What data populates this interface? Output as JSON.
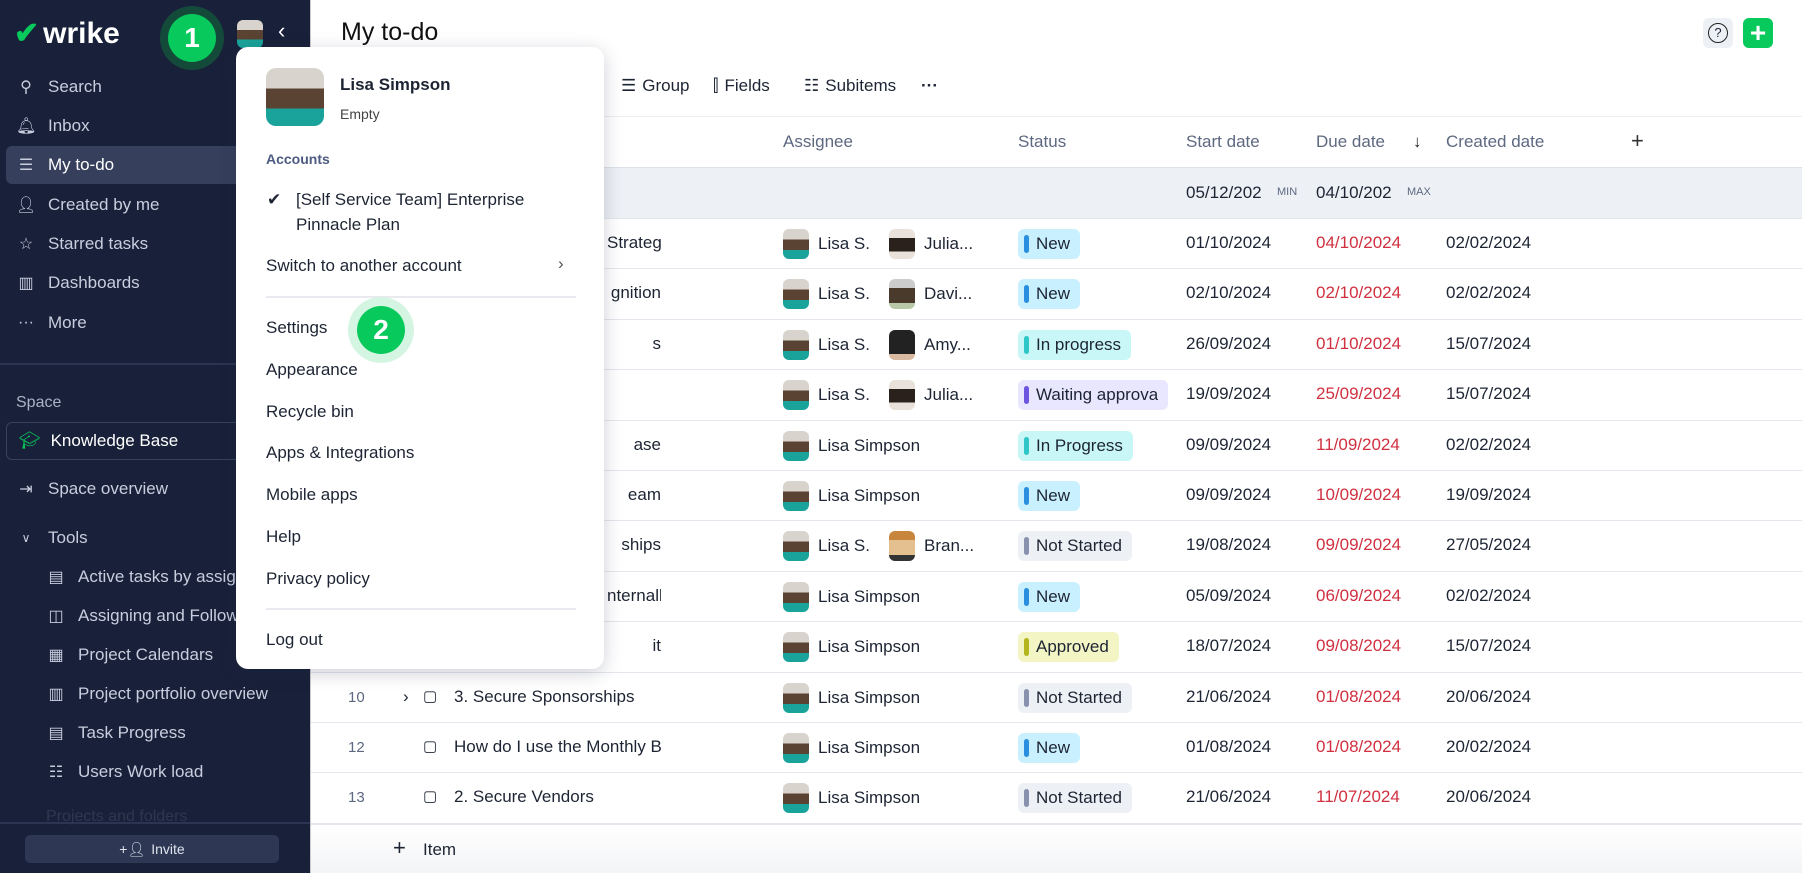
{
  "app": {
    "logo": "wrike"
  },
  "sidebar": {
    "items": [
      {
        "label": "Search",
        "icon": "search-icon"
      },
      {
        "label": "Inbox",
        "icon": "bell-icon"
      },
      {
        "label": "My to-do",
        "icon": "todo-icon",
        "active": true
      },
      {
        "label": "Created by me",
        "icon": "user-arrow-icon"
      },
      {
        "label": "Starred tasks",
        "icon": "star-icon"
      },
      {
        "label": "Dashboards",
        "icon": "dashboard-icon"
      },
      {
        "label": "More",
        "icon": "more-icon"
      }
    ],
    "space_label": "Space",
    "space_name": "Knowledge Base",
    "space_overview": "Space overview",
    "tools_label": "Tools",
    "tools": [
      "Active tasks by assig",
      "Assigning and Follow",
      "Project Calendars",
      "Project portfolio overview",
      "Task Progress",
      "Users Work load"
    ],
    "faded": "Projects and folders",
    "invite": "Invite"
  },
  "header": {
    "title": "My to-do",
    "toolbar": [
      "Group",
      "Fields",
      "Subitems"
    ]
  },
  "table": {
    "columns": [
      "Assignee",
      "Status",
      "Start date",
      "Due date",
      "Created date"
    ],
    "summary": {
      "start": "05/12/202",
      "start_tag": "MIN",
      "due": "04/10/202",
      "due_tag": "MAX"
    },
    "rows": [
      {
        "num": "",
        "title": "Strategy",
        "a1": "Lisa S.",
        "a2": "Julia...",
        "status": "New",
        "start": "01/10/2024",
        "due": "04/10/2024",
        "created": "02/02/2024"
      },
      {
        "num": "",
        "title": "gnition",
        "a1": "Lisa S.",
        "a2": "Davi...",
        "status": "New",
        "start": "02/10/2024",
        "due": "02/10/2024",
        "created": "02/02/2024"
      },
      {
        "num": "",
        "title": "s",
        "a1": "Lisa S.",
        "a2": "Amy...",
        "status": "In progress",
        "start": "26/09/2024",
        "due": "01/10/2024",
        "created": "15/07/2024"
      },
      {
        "num": "",
        "title": "",
        "a1": "Lisa S.",
        "a2": "Julia...",
        "status": "Waiting approva",
        "start": "19/09/2024",
        "due": "25/09/2024",
        "created": "15/07/2024"
      },
      {
        "num": "",
        "title": "ase",
        "a1": "Lisa Simpson",
        "a2": "",
        "status": "In Progress",
        "start": "09/09/2024",
        "due": "11/09/2024",
        "created": "02/02/2024"
      },
      {
        "num": "",
        "title": "eam",
        "a1": "Lisa Simpson",
        "a2": "",
        "status": "New",
        "start": "09/09/2024",
        "due": "10/09/2024",
        "created": "19/09/2024"
      },
      {
        "num": "",
        "title": "ships",
        "a1": "Lisa S.",
        "a2": "Bran...",
        "status": "Not Started",
        "start": "19/08/2024",
        "due": "09/09/2024",
        "created": "27/05/2024"
      },
      {
        "num": "",
        "title": "nternally",
        "a1": "Lisa Simpson",
        "a2": "",
        "status": "New",
        "start": "05/09/2024",
        "due": "06/09/2024",
        "created": "02/02/2024"
      },
      {
        "num": "",
        "title": "it",
        "a1": "Lisa Simpson",
        "a2": "",
        "status": "Approved",
        "start": "18/07/2024",
        "due": "09/08/2024",
        "created": "15/07/2024"
      },
      {
        "num": "10",
        "title": "3. Secure Sponsorships",
        "a1": "Lisa Simpson",
        "a2": "",
        "status": "Not Started",
        "start": "21/06/2024",
        "due": "01/08/2024",
        "created": "20/06/2024",
        "expand": true
      },
      {
        "num": "12",
        "title": "How do I use the Monthly Budget Trac",
        "a1": "Lisa Simpson",
        "a2": "",
        "status": "New",
        "start": "01/08/2024",
        "due": "01/08/2024",
        "created": "20/02/2024"
      },
      {
        "num": "13",
        "title": "2. Secure Vendors",
        "a1": "Lisa Simpson",
        "a2": "",
        "status": "Not Started",
        "start": "21/06/2024",
        "due": "11/07/2024",
        "created": "20/06/2024"
      }
    ],
    "add_item": "Item"
  },
  "status_colors": {
    "New": [
      "#c9f0ff",
      "#2b8fe0"
    ],
    "In progress": [
      "#c9f7f7",
      "#2ec6c6"
    ],
    "In Progress": [
      "#c9f7f7",
      "#2ec6c6"
    ],
    "Waiting approva": [
      "#e9e6ff",
      "#6d55e0"
    ],
    "Not Started": [
      "#edf0f5",
      "#8891ad"
    ],
    "Approved": [
      "#f3f5c4",
      "#b5b51e"
    ]
  },
  "menu": {
    "name": "Lisa Simpson",
    "subtitle": "Empty",
    "accounts_label": "Accounts",
    "account_line1": "[Self Service Team] Enterprise",
    "account_line2": "Pinnacle Plan",
    "switch": "Switch to another account",
    "items": [
      "Settings",
      "Appearance",
      "Recycle bin",
      "Apps & Integrations",
      "Mobile apps",
      "Help",
      "Privacy policy"
    ],
    "logout": "Log out"
  },
  "steps": [
    "1",
    "2"
  ],
  "colors": {
    "accent": "#08c95b",
    "sidebar": "#19203a",
    "overdue": "#d0303f"
  }
}
